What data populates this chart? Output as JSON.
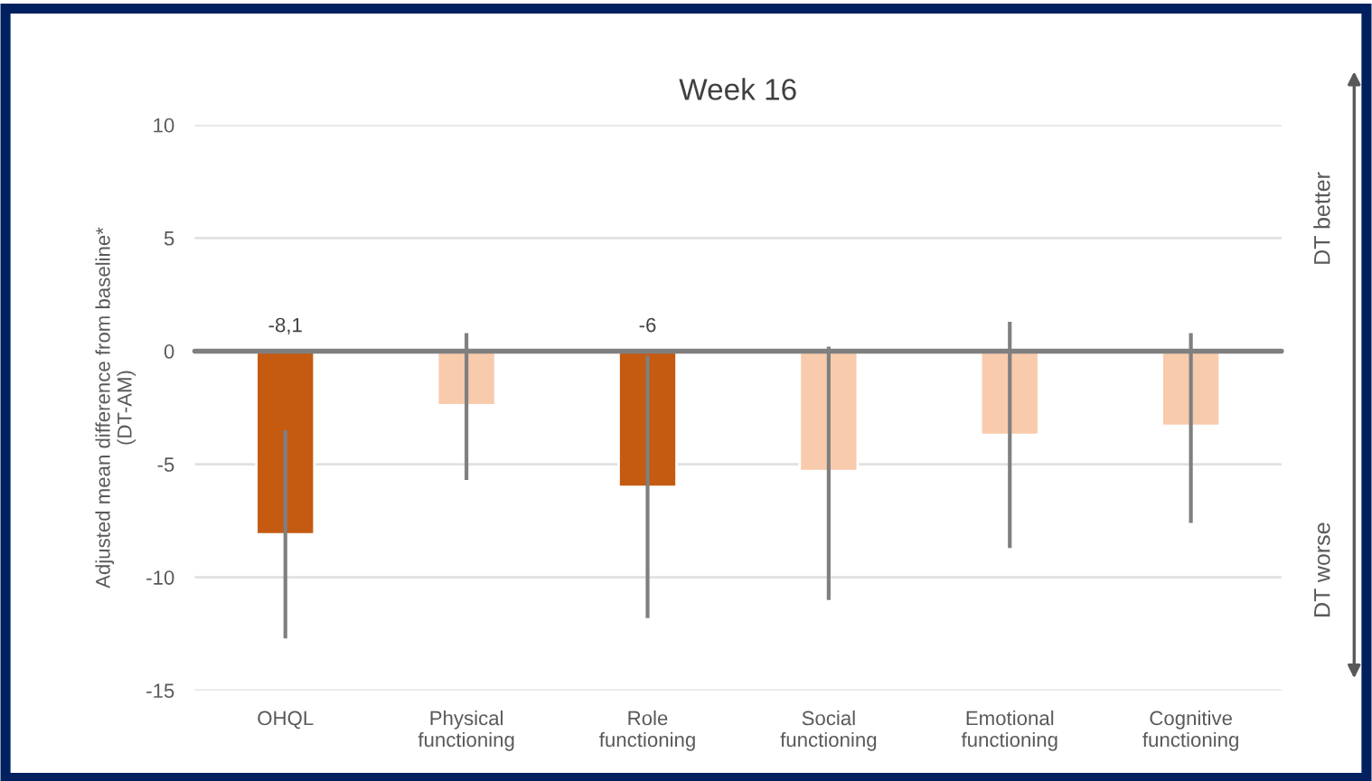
{
  "chart_data": {
    "type": "bar",
    "title": "Week 16",
    "ylabel": "Adjusted mean difference from baseline*\n(DT-AM)",
    "categories": [
      "OHQL",
      "Physical\nfunctioning",
      "Role\nfunctioning",
      "Social\nfunctioning",
      "Emotional\nfunctioning",
      "Cognitive\nfunctioning"
    ],
    "values": [
      -8.1,
      -2.4,
      -6,
      -5.3,
      -3.7,
      -3.3
    ],
    "colors": [
      "#c55a11",
      "#f8cbad",
      "#c55a11",
      "#f8cbad",
      "#f8cbad",
      "#f8cbad"
    ],
    "errors": [
      [
        -12.7,
        -3.5
      ],
      [
        -5.7,
        0.8
      ],
      [
        -11.8,
        -0.2
      ],
      [
        -11.0,
        0.2
      ],
      [
        -8.7,
        1.3
      ],
      [
        -7.6,
        0.8
      ]
    ],
    "value_labels": [
      "-8,1",
      null,
      "-6",
      null,
      null,
      null
    ],
    "ylim": [
      -15,
      10
    ],
    "yticks": [
      -15,
      -10,
      -5,
      0,
      5,
      10
    ],
    "grid": "y",
    "ref_lines": [
      {
        "axis": "y",
        "value": 0,
        "color": "#7f7f7f"
      }
    ],
    "annotations": [
      "DT better",
      "DT worse"
    ]
  }
}
